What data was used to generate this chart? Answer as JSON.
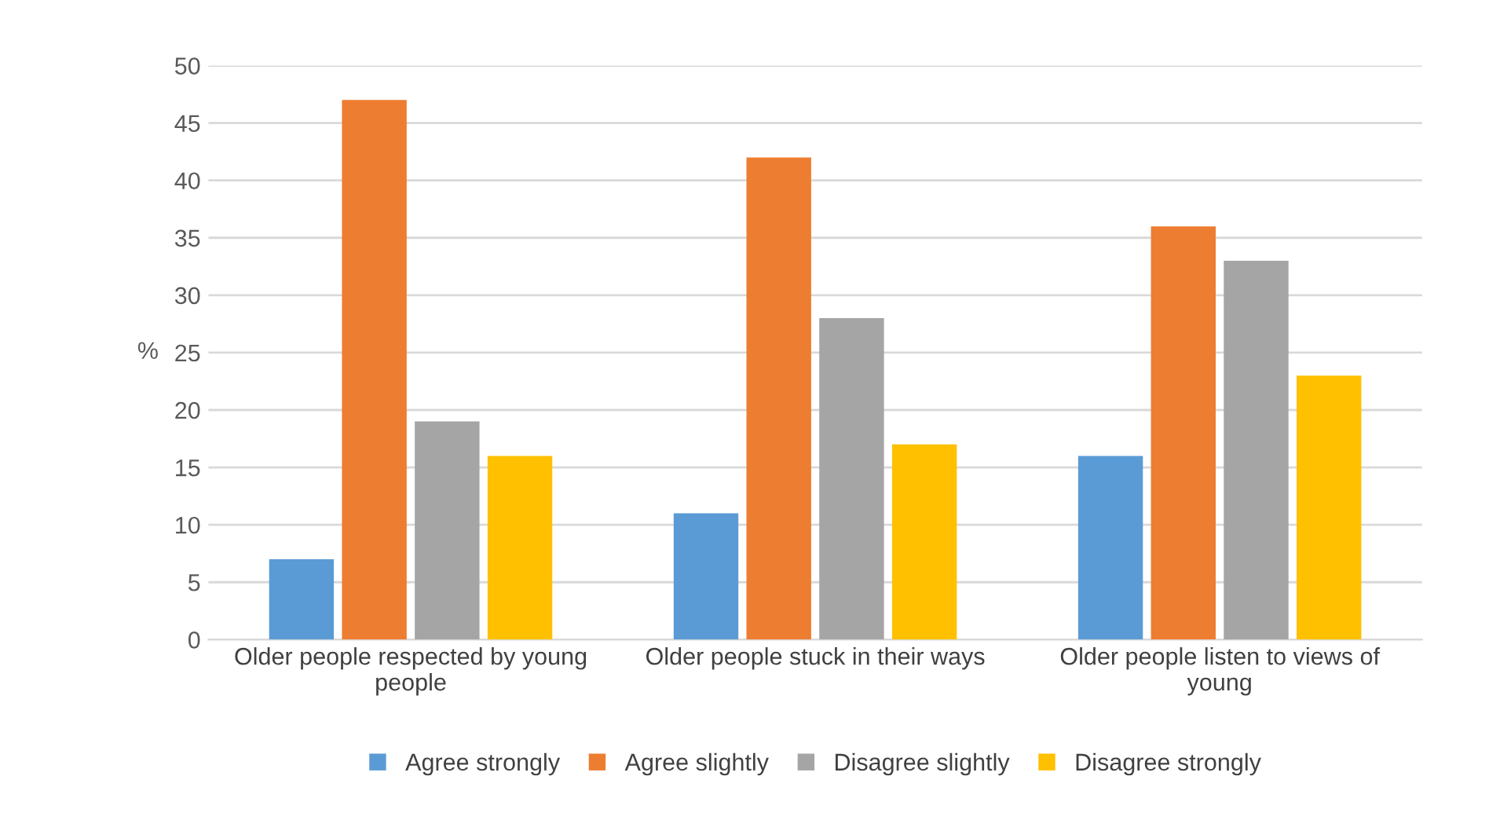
{
  "chart_data": {
    "type": "bar",
    "ylabel": "%",
    "categories": [
      "Older people respected by young people",
      "Older people stuck in their ways",
      "Older people listen to views of young"
    ],
    "series": [
      {
        "name": "Agree strongly",
        "color": "#5b9bd5",
        "values": [
          7,
          11,
          16
        ]
      },
      {
        "name": "Agree slightly",
        "color": "#ed7d31",
        "values": [
          47,
          42,
          36
        ]
      },
      {
        "name": "Disagree slightly",
        "color": "#a5a5a5",
        "values": [
          19,
          28,
          33
        ]
      },
      {
        "name": "Disagree strongly",
        "color": "#ffc000",
        "values": [
          16,
          17,
          23
        ]
      }
    ],
    "ylim": [
      0,
      50
    ],
    "yticks": [
      0,
      5,
      10,
      15,
      20,
      25,
      30,
      35,
      40,
      45,
      50
    ],
    "grid": "y",
    "legend": "bottom"
  }
}
